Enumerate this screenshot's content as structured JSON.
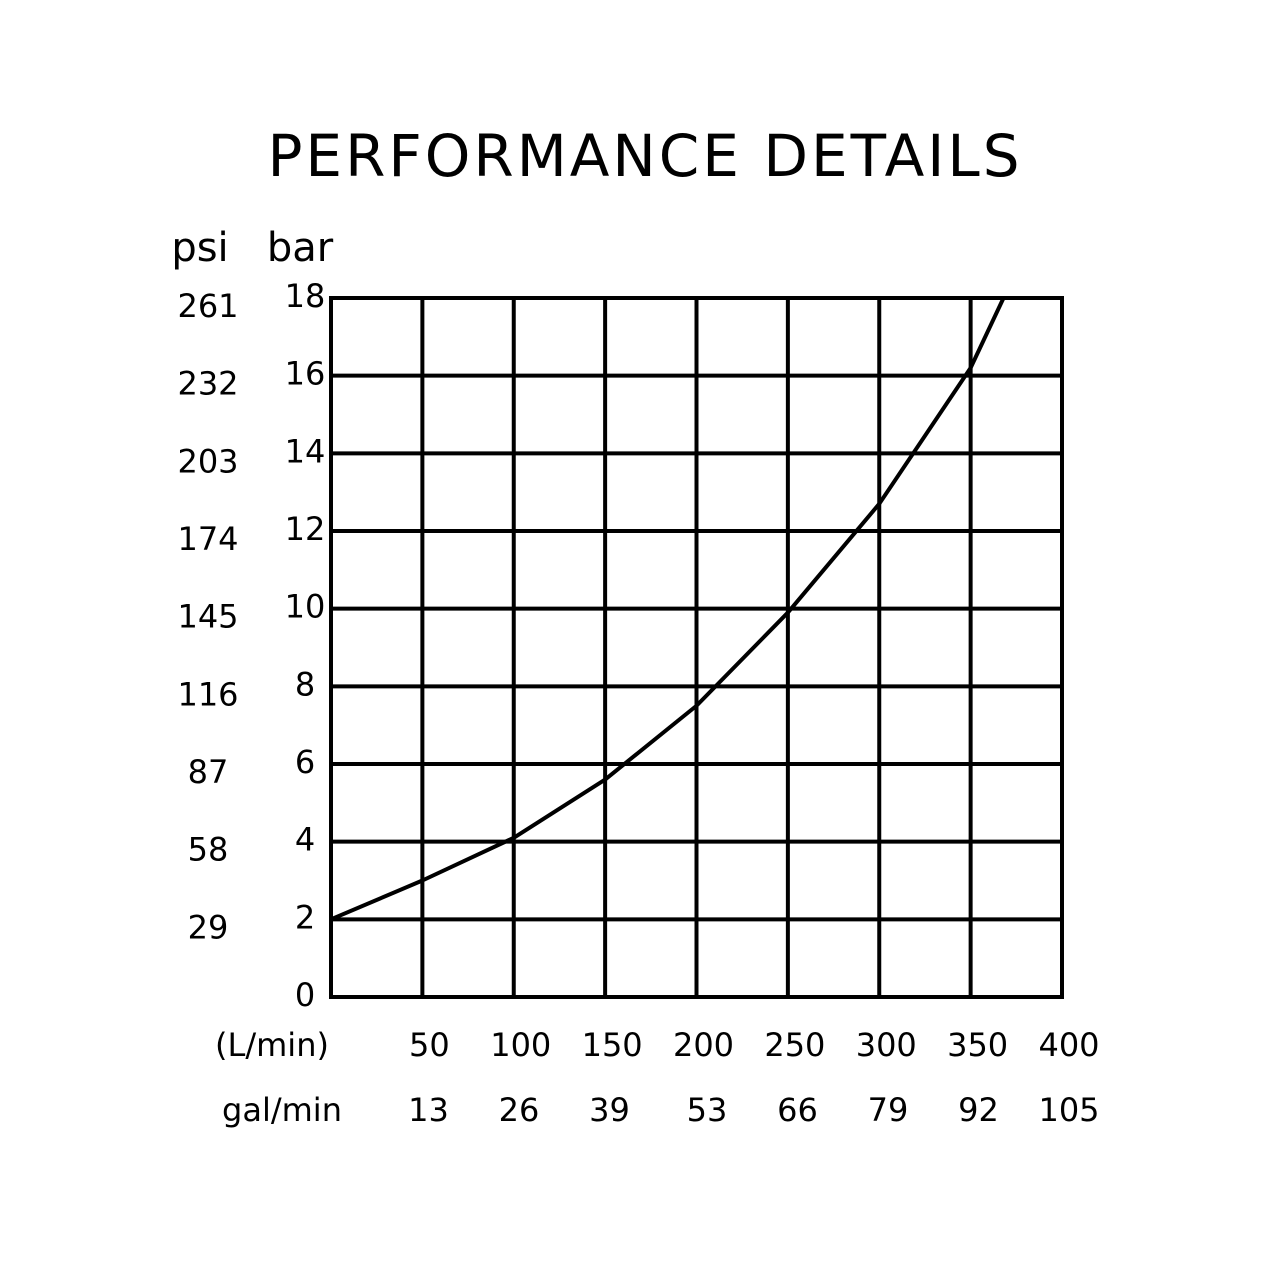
{
  "chart_data": {
    "type": "line",
    "title": "PERFORMANCE DETAILS",
    "y_label": "bar",
    "y2_label": "psi",
    "x_label": "(L/min)",
    "x2_label": "gal/min",
    "x": [
      0,
      50,
      100,
      150,
      200,
      250,
      300,
      350,
      368
    ],
    "series": [
      {
        "color": "#000000",
        "values": [
          2,
          3.0,
          4.1,
          5.6,
          7.5,
          9.9,
          12.7,
          16.2,
          18
        ]
      }
    ],
    "xlim": [
      0,
      400
    ],
    "xticks": [
      50,
      100,
      150,
      200,
      250,
      300,
      350,
      400
    ],
    "x2lim": [
      0,
      105
    ],
    "x2ticks": [
      13,
      26,
      39,
      53,
      66,
      79,
      92,
      105
    ],
    "ylim": [
      0,
      18
    ],
    "yticks": [
      0,
      2,
      4,
      6,
      8,
      10,
      12,
      14,
      16,
      18
    ],
    "y2lim": [
      0,
      261
    ],
    "y2ticks": [
      29,
      58,
      87,
      116,
      145,
      174,
      203,
      232,
      261
    ],
    "grid": true
  }
}
